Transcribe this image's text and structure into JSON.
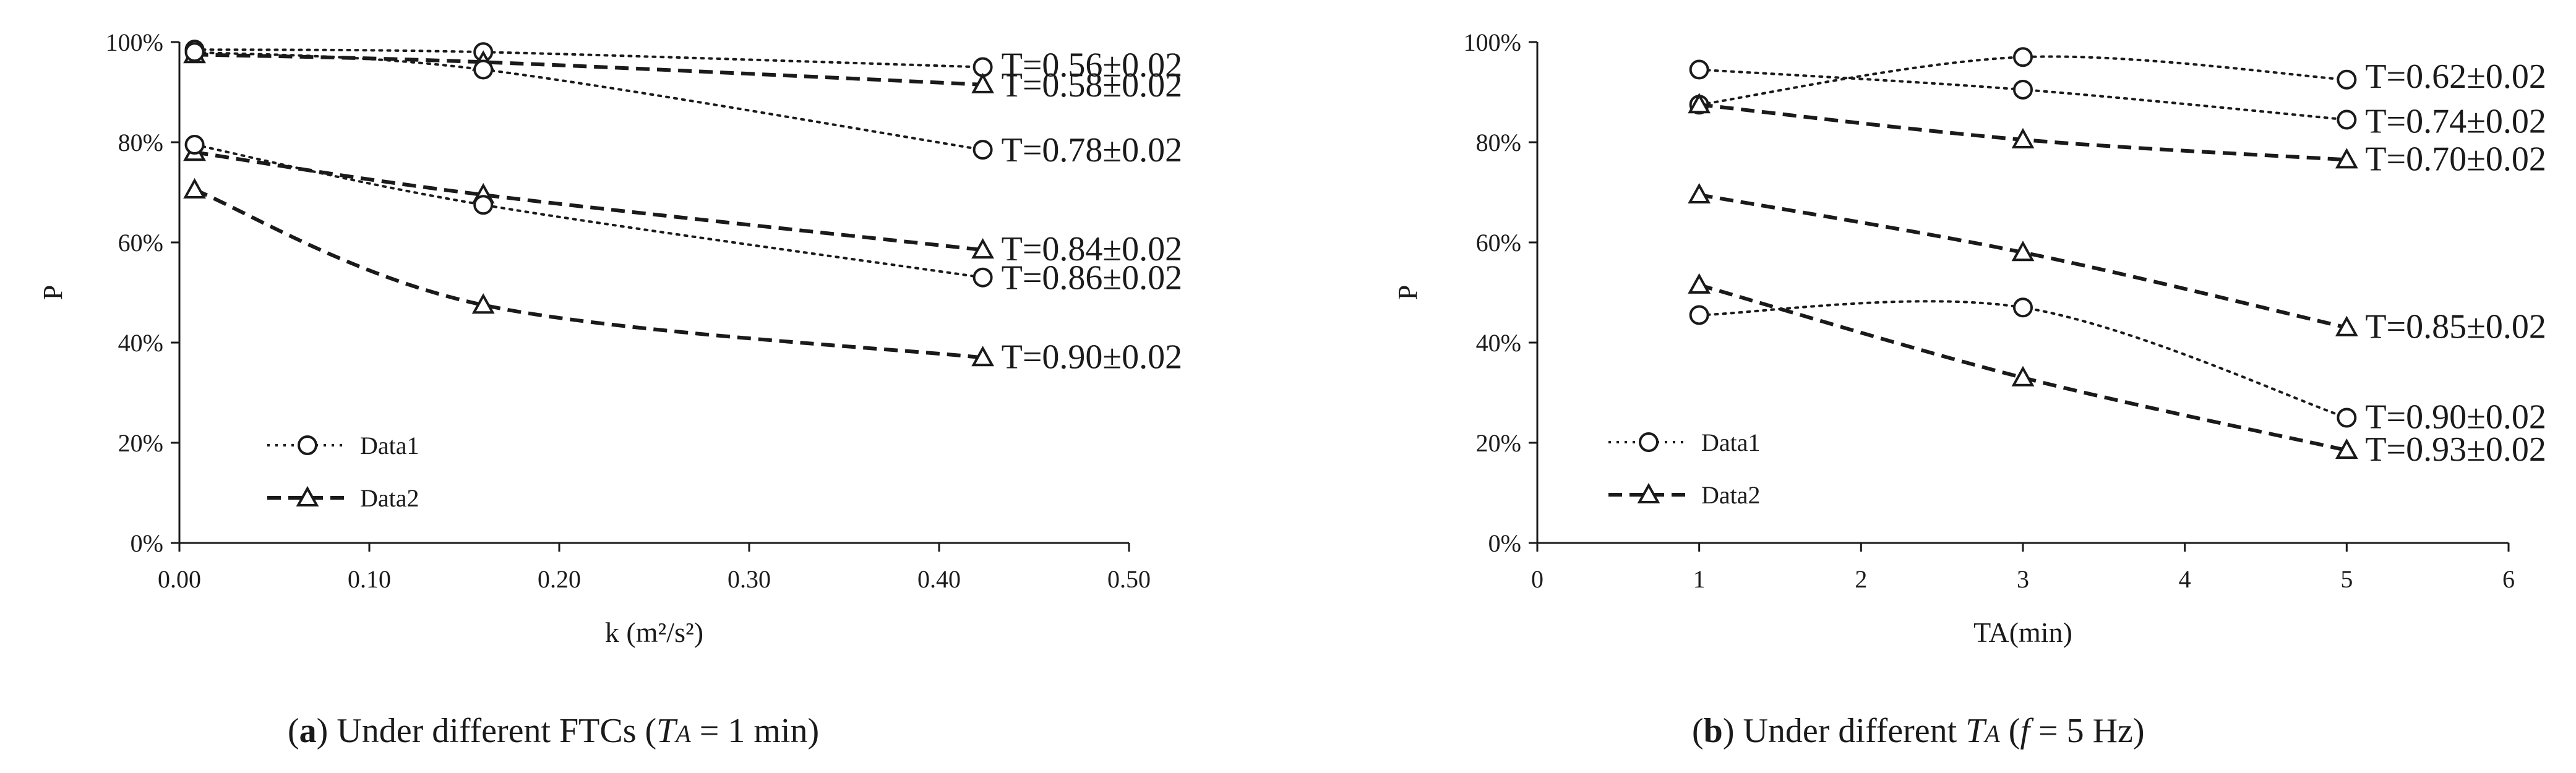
{
  "chart_data": [
    {
      "type": "line",
      "xlabel": "k (m²/s²)",
      "ylabel": "P",
      "xlim": [
        0,
        0.5
      ],
      "ylim": [
        0,
        1
      ],
      "x_ticks": [
        "0.00",
        "0.10",
        "0.20",
        "0.30",
        "0.40",
        "0.50"
      ],
      "y_ticks": [
        "0%",
        "20%",
        "40%",
        "60%",
        "80%",
        "100%"
      ],
      "grid": false,
      "legend": {
        "position": "bottom-left",
        "entries": [
          {
            "label": "Data1",
            "style": "dotted",
            "marker": "circle"
          },
          {
            "label": "Data2",
            "style": "dashed",
            "marker": "triangle"
          }
        ]
      },
      "x": [
        0.008,
        0.16,
        0.423
      ],
      "series": [
        {
          "name": "Data1",
          "label": "T=0.56±0.02",
          "style": "dotted",
          "marker": "circle",
          "values": [
            0.985,
            0.98,
            0.95
          ]
        },
        {
          "name": "Data2",
          "label": "T=0.58±0.02",
          "style": "dashed",
          "marker": "triangle",
          "values": [
            0.975,
            0.96,
            0.915
          ]
        },
        {
          "name": "Data1",
          "label": "T=0.78±0.02",
          "style": "dotted",
          "marker": "circle",
          "values": [
            0.98,
            0.945,
            0.785
          ]
        },
        {
          "name": "Data2",
          "label": "T=0.84±0.02",
          "style": "dashed",
          "marker": "triangle",
          "values": [
            0.78,
            0.695,
            0.585
          ]
        },
        {
          "name": "Data1",
          "label": "T=0.86±0.02",
          "style": "dotted",
          "marker": "circle",
          "values": [
            0.795,
            0.675,
            0.53
          ]
        },
        {
          "name": "Data2",
          "label": "T=0.90±0.02",
          "style": "dashed",
          "marker": "triangle",
          "values": [
            0.705,
            0.475,
            0.37
          ]
        }
      ]
    },
    {
      "type": "line",
      "xlabel": "TA(min)",
      "ylabel": "P",
      "xlim": [
        0,
        6
      ],
      "ylim": [
        0,
        1
      ],
      "x_ticks": [
        "0",
        "1",
        "2",
        "3",
        "4",
        "5",
        "6"
      ],
      "y_ticks": [
        "0%",
        "20%",
        "40%",
        "60%",
        "80%",
        "100%"
      ],
      "grid": false,
      "legend": {
        "position": "bottom-left",
        "entries": [
          {
            "label": "Data1",
            "style": "dotted",
            "marker": "circle"
          },
          {
            "label": "Data2",
            "style": "dashed",
            "marker": "triangle"
          }
        ]
      },
      "x": [
        1,
        3,
        5
      ],
      "series": [
        {
          "name": "Data1",
          "label": "T=0.62±0.02",
          "style": "dotted",
          "marker": "circle",
          "values": [
            0.875,
            0.97,
            0.925
          ]
        },
        {
          "name": "Data1",
          "label": "T=0.74±0.02",
          "style": "dotted",
          "marker": "circle",
          "values": [
            0.945,
            0.905,
            0.845
          ]
        },
        {
          "name": "Data2",
          "label": "T=0.70±0.02",
          "style": "dashed",
          "marker": "triangle",
          "values": [
            0.875,
            0.805,
            0.765
          ]
        },
        {
          "name": "Data2",
          "label": "T=0.85±0.02",
          "style": "dashed",
          "marker": "triangle",
          "values": [
            0.695,
            0.58,
            0.43
          ]
        },
        {
          "name": "Data1",
          "label": "T=0.90±0.02",
          "style": "dotted",
          "marker": "circle",
          "values": [
            0.455,
            0.47,
            0.25
          ]
        },
        {
          "name": "Data2",
          "label": "T=0.93±0.02",
          "style": "dashed",
          "marker": "triangle",
          "values": [
            0.515,
            0.33,
            0.185
          ]
        }
      ]
    }
  ],
  "captions": [
    {
      "letter": "a",
      "text_before": " Under different FTCs (",
      "math": "T",
      "sub": "A",
      "text_after": " = 1 min)"
    },
    {
      "letter": "b",
      "text_before": " Under different ",
      "math": "T",
      "sub": "A",
      "text_paren": " (",
      "math2": "f",
      "text_after": " = 5 Hz)"
    }
  ]
}
